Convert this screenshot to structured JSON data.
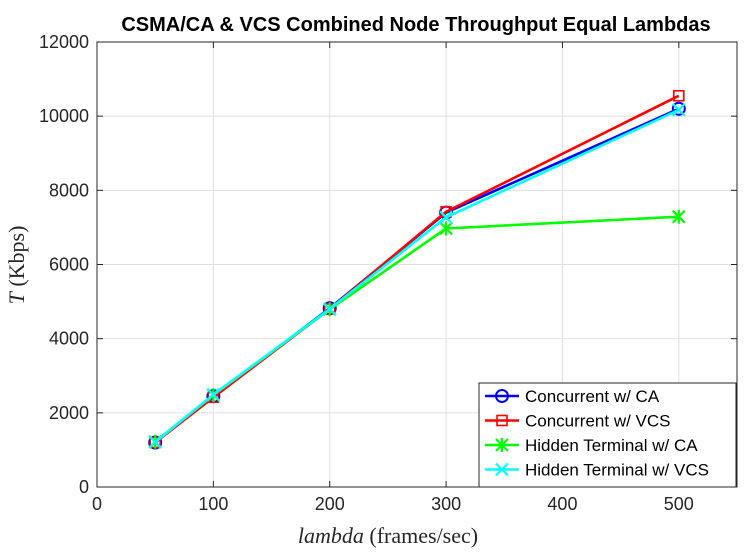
{
  "chart_data": {
    "type": "line",
    "title": "CSMA/CA & VCS Combined Node Throughput Equal Lambdas",
    "xlabel_var": "lambda",
    "xlabel_unit": "(frames/sec)",
    "ylabel_var": "T",
    "ylabel_unit": "(Kbps)",
    "xlim": [
      0,
      550
    ],
    "ylim": [
      0,
      12000
    ],
    "xticks": [
      0,
      100,
      200,
      300,
      400,
      500
    ],
    "yticks": [
      0,
      2000,
      4000,
      6000,
      8000,
      10000,
      12000
    ],
    "grid": true,
    "legend_position": "bottom-right",
    "x": [
      50,
      100,
      200,
      300,
      500
    ],
    "series": [
      {
        "name": "Concurrent w/ CA",
        "color": "#0000ff",
        "marker": "circle",
        "values": [
          1200,
          2450,
          4820,
          7400,
          10200
        ]
      },
      {
        "name": "Concurrent w/ VCS",
        "color": "#ff0000",
        "marker": "square",
        "values": [
          1200,
          2420,
          4800,
          7420,
          10550
        ]
      },
      {
        "name": "Hidden Terminal w/ CA",
        "color": "#00ff00",
        "marker": "asterisk",
        "values": [
          1220,
          2480,
          4790,
          6970,
          7290
        ]
      },
      {
        "name": "Hidden Terminal w/ VCS",
        "color": "#00ffff",
        "marker": "x",
        "values": [
          1210,
          2490,
          4800,
          7270,
          10170
        ]
      }
    ]
  }
}
